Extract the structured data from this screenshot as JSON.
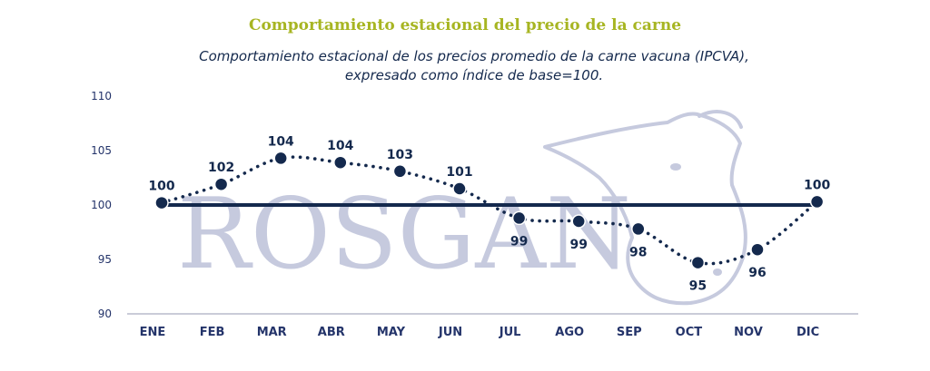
{
  "colors": {
    "title": "#a7b522",
    "navy": "#14294d",
    "watermark": "#c6cade",
    "axis": "#24346a"
  },
  "header": {
    "title": "Comportamiento estacional del precio de la carne",
    "subtitle_line1": "Comportamiento estacional de los precios promedio de la carne vacuna (IPCVA),",
    "subtitle_line2": "expresado como índice de base=100."
  },
  "watermark": {
    "text": "ROSGAN",
    "icon": "cow-head-icon"
  },
  "chart_data": {
    "type": "line",
    "title": "Comportamiento estacional del precio de la carne",
    "subtitle": "Comportamiento estacional de los precios promedio de la carne vacuna (IPCVA), expresado como índice de base=100.",
    "categories": [
      "ENE",
      "FEB",
      "MAR",
      "ABR",
      "MAY",
      "JUN",
      "JUL",
      "AGO",
      "SEP",
      "OCT",
      "NOV",
      "DIC"
    ],
    "series": [
      {
        "style": "dotted",
        "values": [
          100.2,
          101.9,
          104.3,
          103.9,
          103.1,
          101.5,
          98.8,
          98.5,
          97.8,
          94.7,
          95.9,
          100.3
        ],
        "labels": [
          "100",
          "102",
          "104",
          "104",
          "103",
          "101",
          "99",
          "99",
          "98",
          "95",
          "96",
          "100"
        ]
      }
    ],
    "reference_line": 100,
    "ylim": [
      90,
      110
    ],
    "yticks": [
      "90",
      "95",
      "100",
      "105",
      "110"
    ],
    "grid": false,
    "legend": "none"
  }
}
